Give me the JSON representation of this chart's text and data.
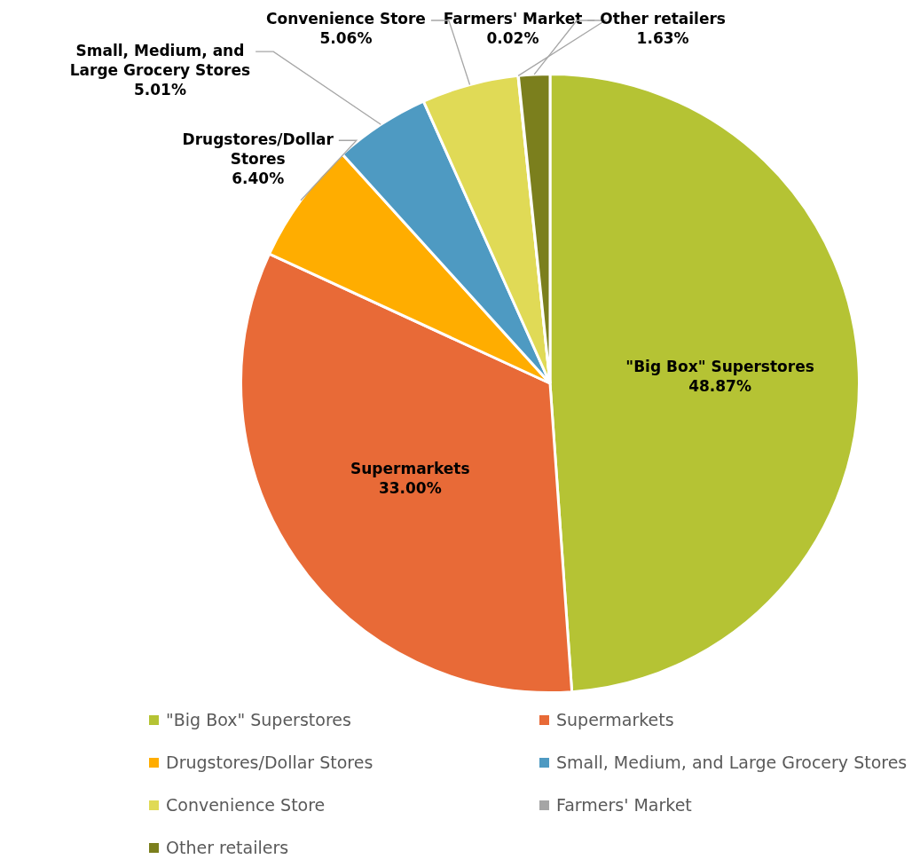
{
  "chart_data": {
    "type": "pie",
    "categories": [
      "\"Big Box\" Superstores",
      "Supermarkets",
      "Drugstores/Dollar Stores",
      "Small, Medium, and Large Grocery Stores",
      "Convenience Store",
      "Farmers' Market",
      "Other retailers"
    ],
    "values": [
      48.87,
      33.0,
      6.4,
      5.01,
      5.06,
      0.02,
      1.63
    ],
    "colors": [
      "#b5c334",
      "#e86a37",
      "#ffad00",
      "#4e9ac2",
      "#e0da56",
      "#a5a5a5",
      "#7b7f1d"
    ],
    "value_labels": [
      "48.87%",
      "33.00%",
      "6.40%",
      "5.01%",
      "5.06%",
      "0.02%",
      "1.63%"
    ],
    "legend": "bottom"
  }
}
